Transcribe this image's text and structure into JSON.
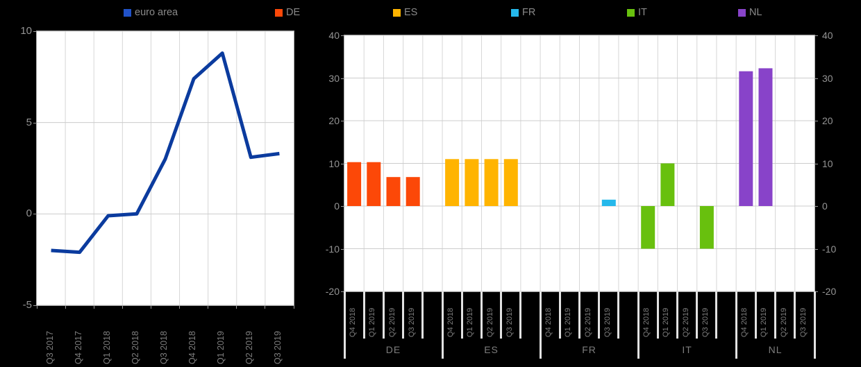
{
  "legend": {
    "text_color": "#8a8a8a",
    "items": [
      {
        "label": "euro area",
        "color": "#2152c8"
      },
      {
        "label": "DE",
        "color": "#fc4808"
      },
      {
        "label": "ES",
        "color": "#ffb400"
      },
      {
        "label": "FR",
        "color": "#25b8eb"
      },
      {
        "label": "IT",
        "color": "#68c00e"
      },
      {
        "label": "NL",
        "color": "#8843c9"
      }
    ]
  },
  "chart_data": [
    {
      "type": "line",
      "title": "euro area",
      "categories": [
        "Q3 2017",
        "Q4 2017",
        "Q1 2018",
        "Q2 2018",
        "Q3 2018",
        "Q4 2018",
        "Q1 2019",
        "Q2 2019",
        "Q3 2019"
      ],
      "values": [
        -2.0,
        -2.1,
        -0.1,
        0.0,
        3.0,
        7.4,
        8.8,
        3.1,
        3.3
      ],
      "ylim": [
        -5,
        10
      ],
      "yticks": [
        "10",
        "5",
        "0",
        "-5"
      ],
      "line_color": "#0b3b9e",
      "grid": true,
      "legend_position": "top"
    },
    {
      "type": "bar",
      "categories": [
        "Q4 2018",
        "Q1 2019",
        "Q2 2019",
        "Q3 2019"
      ],
      "series": [
        {
          "name": "DE",
          "color": "#fc4808",
          "values": [
            10.3,
            10.3,
            6.8,
            6.8
          ]
        },
        {
          "name": "ES",
          "color": "#ffb400",
          "values": [
            11,
            11,
            11,
            11
          ]
        },
        {
          "name": "FR",
          "color": "#25b8eb",
          "values": [
            null,
            null,
            null,
            1.5
          ]
        },
        {
          "name": "IT",
          "color": "#68c00e",
          "values": [
            -10,
            10,
            null,
            -10
          ]
        },
        {
          "name": "NL",
          "color": "#8843c9",
          "values": [
            31.6,
            32.3,
            null,
            null
          ]
        }
      ],
      "ylim": [
        -20,
        40
      ],
      "yticks": [
        "40",
        "30",
        "20",
        "10",
        "0",
        "-10",
        "-20"
      ],
      "grid": true,
      "y_axis_sides": "both"
    }
  ],
  "axis": {
    "tick_label_color": "#949494",
    "bottom_label_color": "#7d7d7d"
  }
}
